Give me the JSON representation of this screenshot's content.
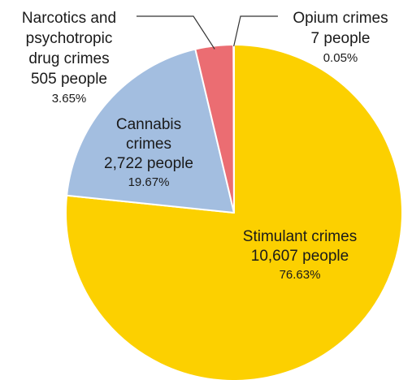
{
  "chart_data": {
    "type": "pie",
    "title": "",
    "start_angle_deg": 0,
    "direction": "clockwise",
    "slices": [
      {
        "name": "Stimulant crimes",
        "count_label": "10,607 people",
        "percent_label": "76.63%",
        "value": 10607,
        "percent": 76.63,
        "color": "#FCD000",
        "name_lines": [
          "Stimulant crimes"
        ]
      },
      {
        "name": "Cannabis crimes",
        "count_label": "2,722 people",
        "percent_label": "19.67%",
        "value": 2722,
        "percent": 19.67,
        "color": "#A3BEE0",
        "name_lines": [
          "Cannabis",
          "crimes"
        ]
      },
      {
        "name": "Narcotics and psychotropic drug crimes",
        "count_label": "505 people",
        "percent_label": "3.65%",
        "value": 505,
        "percent": 3.65,
        "color": "#EB6D72",
        "name_lines": [
          "Narcotics and",
          "psychotropic",
          "drug crimes"
        ]
      },
      {
        "name": "Opium crimes",
        "count_label": "7 people",
        "percent_label": "0.05%",
        "value": 7,
        "percent": 0.05,
        "color": "#3A3A3A",
        "name_lines": [
          "Opium crimes"
        ]
      }
    ]
  }
}
